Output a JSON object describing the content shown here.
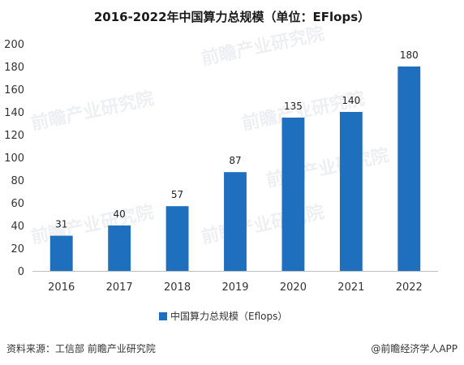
{
  "chart_data": {
    "type": "bar",
    "title": "2016-2022年中国算力总规模（单位：EFlops）",
    "categories": [
      "2016",
      "2017",
      "2018",
      "2019",
      "2020",
      "2021",
      "2022"
    ],
    "series": [
      {
        "name": "中国算力总规模（Eflops）",
        "values": [
          31,
          40,
          57,
          87,
          135,
          140,
          180
        ]
      }
    ],
    "data_labels": [
      "31",
      "40",
      "57",
      "87",
      "135",
      "140",
      "180"
    ],
    "y_ticks": [
      "0",
      "20",
      "40",
      "60",
      "80",
      "100",
      "120",
      "140",
      "160",
      "180",
      "200"
    ],
    "ylim": [
      0,
      200
    ],
    "xlabel": "",
    "ylabel": "",
    "grid": false,
    "legend_position": "bottom",
    "bar_color": "#1f6fbf"
  },
  "footer": {
    "source": "资料来源：工信部 前瞻产业研究院",
    "brand": "@前瞻经济学人APP"
  },
  "watermark": "前瞻产业研究院"
}
